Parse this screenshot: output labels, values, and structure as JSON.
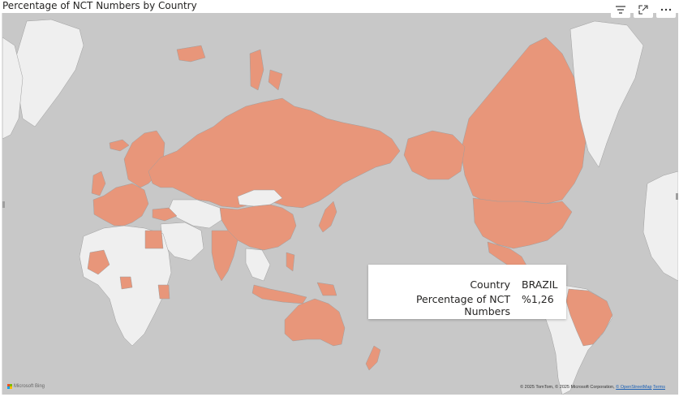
{
  "visual": {
    "title": "Percentage of NCT Numbers by Country"
  },
  "toolbar": {
    "filter_icon": "filter-lines-icon",
    "focus_icon": "expand-focus-icon",
    "more_icon": "more-options-icon"
  },
  "tooltip": {
    "rows": [
      {
        "key": "Country",
        "value": "BRAZIL"
      },
      {
        "key": "Percentage of NCT Numbers",
        "value": "%1,26"
      }
    ]
  },
  "map": {
    "ocean_color": "#c8c8c8",
    "land_color": "#efefef",
    "highlight_color": "#e8967a",
    "border_color": "#9e9e9e",
    "highlighted_countries": [
      "Russia",
      "United States",
      "Canada",
      "China",
      "India",
      "Australia",
      "Brazil",
      "Mexico",
      "France",
      "Spain",
      "Germany",
      "Italy",
      "United Kingdom",
      "Poland",
      "Sweden",
      "Norway",
      "Finland",
      "Japan",
      "South Korea",
      "Turkey",
      "Egypt",
      "Mali",
      "Kenya",
      "Nigeria",
      "Indonesia",
      "Philippines",
      "New Zealand",
      "Iceland"
    ]
  },
  "attribution": {
    "brand": "Microsoft Bing",
    "text": "© 2025 TomTom, © 2025 Microsoft Corporation, ",
    "osm_link": "© OpenStreetMap",
    "terms_link": "Terms"
  },
  "colors": {
    "title_text": "#252423",
    "ms_red": "#f25022",
    "ms_green": "#7fba00",
    "ms_blue": "#00a4ef",
    "ms_yellow": "#ffb900"
  }
}
